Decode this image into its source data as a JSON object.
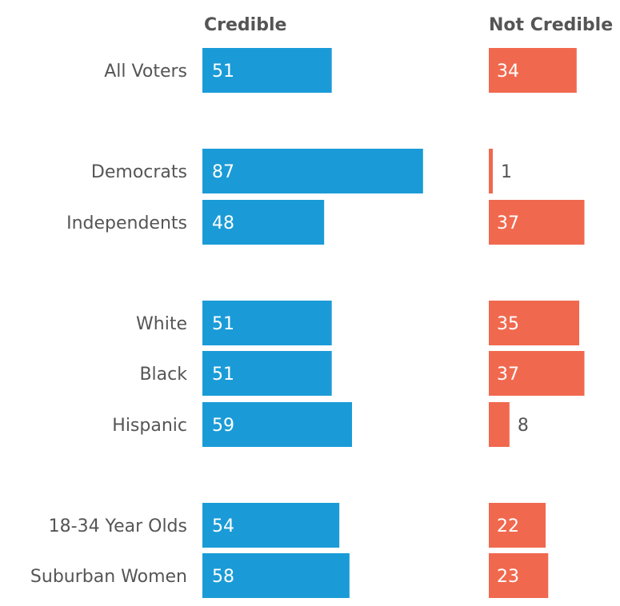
{
  "chart_data": {
    "type": "bar",
    "orientation": "horizontal",
    "layout": "two-panel",
    "categories": [
      "All Voters",
      "Democrats",
      "Independents",
      "White",
      "Black",
      "Hispanic",
      "18-34 Year Olds",
      "Suburban Women"
    ],
    "groups": [
      [
        "All Voters"
      ],
      [
        "Democrats",
        "Independents"
      ],
      [
        "White",
        "Black",
        "Hispanic"
      ],
      [
        "18-34 Year Olds",
        "Suburban Women"
      ]
    ],
    "series": [
      {
        "name": "Credible",
        "values": [
          51,
          87,
          48,
          51,
          51,
          59,
          54,
          58
        ],
        "color": "#1a9bd7"
      },
      {
        "name": "Not Credible",
        "values": [
          34,
          1,
          37,
          35,
          37,
          8,
          22,
          23
        ],
        "color": "#f0694f"
      }
    ],
    "label_color": "#555555",
    "header_color": "#555555",
    "grid": false,
    "value_labels": true
  }
}
